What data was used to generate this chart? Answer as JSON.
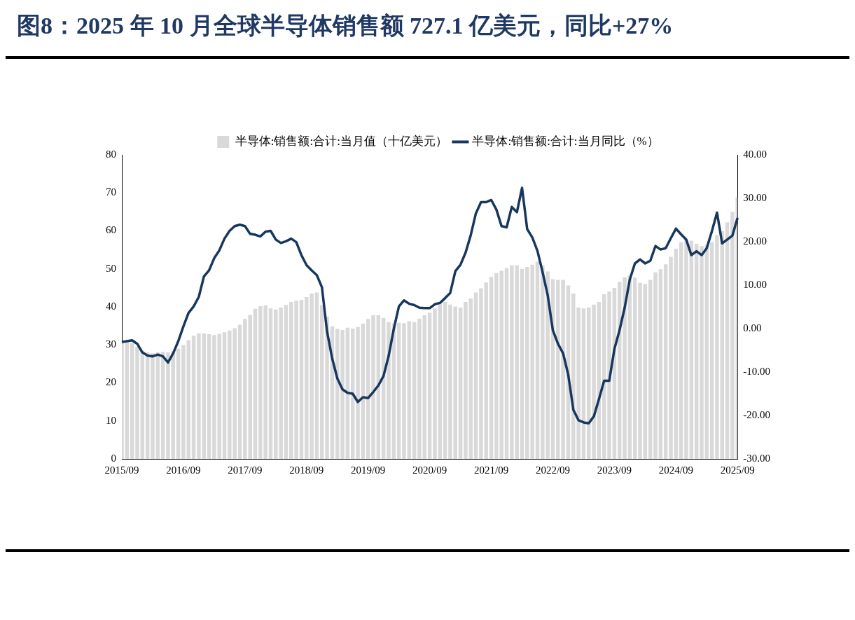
{
  "chart_data": {
    "type": "bar",
    "title": "图8：2025 年 10 月全球半导体销售额 727.1 亿美元，同比+27%",
    "categories": [
      "2015/09",
      null,
      null,
      null,
      null,
      null,
      null,
      null,
      null,
      null,
      null,
      null,
      "2016/09",
      null,
      null,
      null,
      null,
      null,
      null,
      null,
      null,
      null,
      null,
      null,
      "2017/09",
      null,
      null,
      null,
      null,
      null,
      null,
      null,
      null,
      null,
      null,
      null,
      "2018/09",
      null,
      null,
      null,
      null,
      null,
      null,
      null,
      null,
      null,
      null,
      null,
      "2019/09",
      null,
      null,
      null,
      null,
      null,
      null,
      null,
      null,
      null,
      null,
      null,
      "2020/09",
      null,
      null,
      null,
      null,
      null,
      null,
      null,
      null,
      null,
      null,
      null,
      "2021/09",
      null,
      null,
      null,
      null,
      null,
      null,
      null,
      null,
      null,
      null,
      null,
      "2022/09",
      null,
      null,
      null,
      null,
      null,
      null,
      null,
      null,
      null,
      null,
      null,
      "2023/09",
      null,
      null,
      null,
      null,
      null,
      null,
      null,
      null,
      null,
      null,
      null,
      "2024/09",
      null,
      null,
      null,
      null,
      null,
      null,
      null,
      null,
      null,
      null,
      null,
      "2025/09"
    ],
    "series": [
      {
        "name": "半导体:销售额:合计:当月值（十亿美元）",
        "color": "#d9d9d9",
        "values": [
          30.5,
          30.8,
          30.5,
          29.5,
          28.5,
          28.0,
          27.8,
          28.0,
          28.2,
          28.0,
          28.3,
          29.0,
          30.0,
          31.2,
          32.4,
          33.0,
          33.0,
          32.8,
          32.6,
          32.9,
          33.3,
          33.8,
          34.4,
          35.3,
          36.8,
          37.9,
          39.5,
          40.2,
          40.4,
          39.6,
          39.3,
          39.8,
          40.5,
          41.3,
          41.6,
          41.8,
          42.6,
          43.5,
          43.8,
          40.5,
          37.4,
          34.9,
          34.2,
          33.9,
          34.5,
          34.3,
          34.7,
          35.6,
          36.8,
          37.8,
          37.8,
          37.1,
          36.0,
          35.6,
          35.8,
          35.7,
          36.2,
          36.0,
          36.9,
          37.8,
          38.5,
          39.6,
          40.8,
          41.3,
          40.6,
          40.1,
          39.8,
          41.3,
          42.2,
          43.8,
          44.9,
          46.4,
          47.9,
          48.9,
          49.5,
          50.2,
          50.9,
          50.9,
          50.0,
          50.5,
          51.1,
          51.9,
          50.9,
          49.3,
          47.3,
          47.1,
          47.1,
          45.6,
          43.5,
          39.8,
          39.6,
          39.8,
          40.6,
          41.3,
          43.3,
          44.0,
          45.0,
          46.6,
          47.8,
          48.2,
          47.7,
          46.3,
          46.0,
          47.1,
          49.1,
          49.9,
          51.2,
          53.2,
          55.3,
          57.0,
          57.6,
          57.4,
          56.6,
          56.0,
          56.3,
          57.0,
          58.9,
          59.9,
          62.2,
          65.0,
          68.9
        ]
      },
      {
        "type": "line",
        "axis": "y2",
        "name": "半导体:销售额:合计:当月同比（%）",
        "color": "#17375e",
        "values": [
          -3.1,
          -2.9,
          -2.7,
          -3.5,
          -5.5,
          -6.2,
          -6.4,
          -6.0,
          -6.4,
          -7.8,
          -5.7,
          -2.9,
          0.5,
          3.6,
          5.1,
          7.3,
          12.0,
          13.4,
          16.2,
          18.0,
          20.7,
          22.5,
          23.6,
          23.9,
          23.6,
          21.8,
          21.6,
          21.2,
          22.3,
          22.5,
          20.5,
          19.7,
          20.1,
          20.7,
          19.9,
          16.9,
          14.6,
          13.4,
          12.3,
          9.5,
          -0.7,
          -6.9,
          -11.5,
          -14.0,
          -14.8,
          -15.0,
          -16.9,
          -15.8,
          -16.0,
          -14.6,
          -13.1,
          -10.9,
          -6.3,
          -0.1,
          5.1,
          6.5,
          5.7,
          5.4,
          4.8,
          4.7,
          4.7,
          5.6,
          5.9,
          7.0,
          8.2,
          13.2,
          14.7,
          17.5,
          21.5,
          26.5,
          29.1,
          29.1,
          29.6,
          27.4,
          23.6,
          23.3,
          28.0,
          26.8,
          32.4,
          22.9,
          21.0,
          17.9,
          13.0,
          7.7,
          -0.4,
          -3.5,
          -5.7,
          -10.6,
          -18.7,
          -21.1,
          -21.6,
          -21.8,
          -20.2,
          -16.2,
          -12.0,
          -12.0,
          -4.7,
          -0.4,
          4.8,
          11.3,
          15.0,
          15.9,
          15.0,
          15.6,
          19.0,
          18.2,
          18.5,
          20.8,
          23.0,
          21.7,
          20.5,
          16.9,
          17.8,
          16.9,
          18.5,
          22.4,
          26.7,
          19.6,
          20.5,
          21.4,
          25.5
        ]
      }
    ],
    "ylim": [
      0,
      80
    ],
    "yticks": [
      0,
      10,
      20,
      30,
      40,
      50,
      60,
      70,
      80
    ],
    "y2lim": [
      -30,
      40
    ],
    "y2ticks": [
      {
        "value": -30,
        "label": "-30.00"
      },
      {
        "value": -20,
        "label": "-20.00"
      },
      {
        "value": -10,
        "label": "-10.00"
      },
      {
        "value": 0,
        "label": "0.00"
      },
      {
        "value": 10,
        "label": "10.00"
      },
      {
        "value": 20,
        "label": "20.00"
      },
      {
        "value": 30,
        "label": "30.00"
      },
      {
        "value": 40,
        "label": "40.00"
      }
    ],
    "legend": "top",
    "grid": false
  }
}
